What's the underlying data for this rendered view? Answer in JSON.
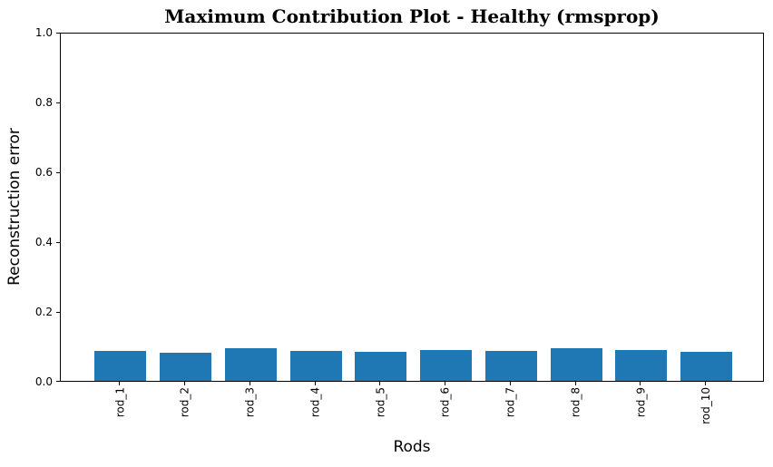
{
  "chart_data": {
    "type": "bar",
    "title": "Maximum Contribution Plot - Healthy (rmsprop)",
    "xlabel": "Rods",
    "ylabel": "Reconstruction error",
    "categories": [
      "rod_1",
      "rod_2",
      "rod_3",
      "rod_4",
      "rod_5",
      "rod_6",
      "rod_7",
      "rod_8",
      "rod_9",
      "rod_10"
    ],
    "values": [
      0.087,
      0.081,
      0.095,
      0.085,
      0.084,
      0.088,
      0.085,
      0.094,
      0.088,
      0.084
    ],
    "ylim": [
      0.0,
      1.0
    ],
    "yticks": [
      0.0,
      0.2,
      0.4,
      0.6,
      0.8,
      1.0
    ],
    "ytick_labels": [
      "0.0",
      "0.2",
      "0.4",
      "0.6",
      "0.8",
      "1.0"
    ],
    "xtick_rotation": 90,
    "bar_color": "#1f77b4",
    "grid": false,
    "legend": null
  }
}
